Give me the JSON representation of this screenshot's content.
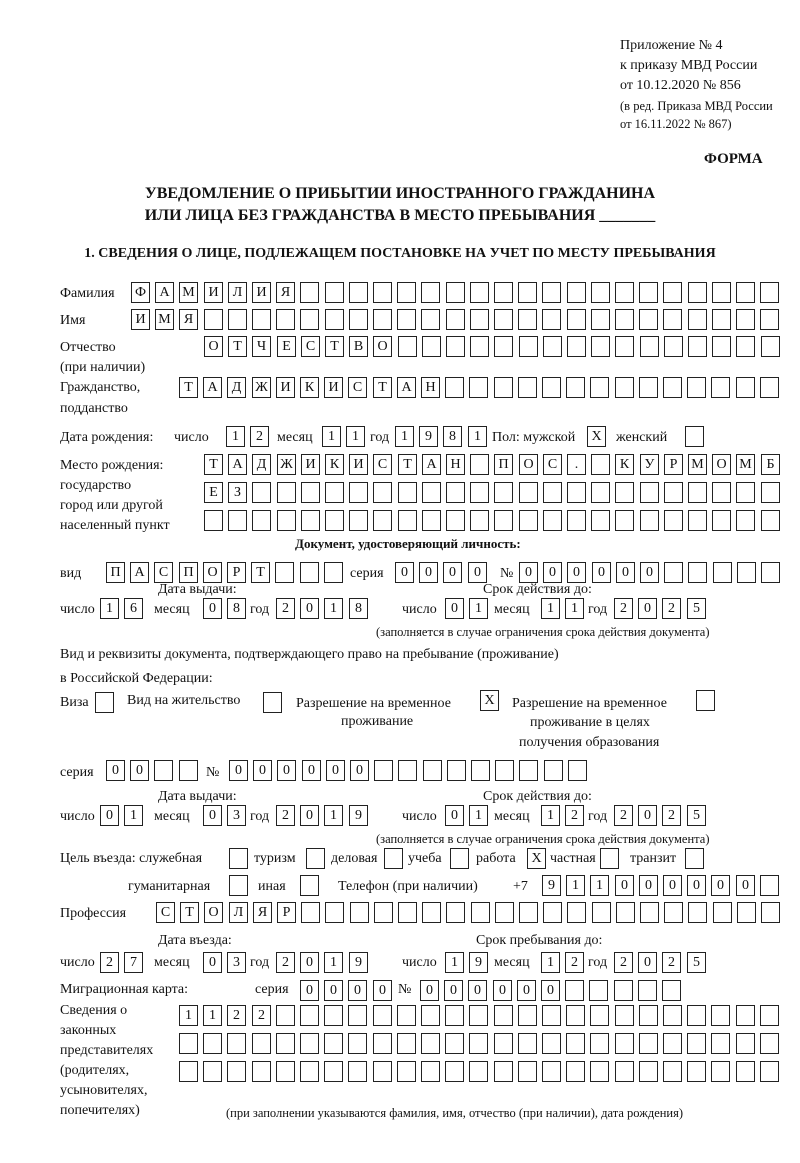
{
  "header": {
    "appendix": "Приложение № 4",
    "order": "к приказу МВД России",
    "order_date": "от 10.12.2020 № 856",
    "revision_1": "(в ред. Приказа МВД России",
    "revision_2": "от 16.11.2022 № 867)",
    "form_label": "ФОРМА",
    "title_1": "УВЕДОМЛЕНИЕ О ПРИБЫТИИ ИНОСТРАННОГО ГРАЖДАНИНА",
    "title_2": "ИЛИ ЛИЦА БЕЗ ГРАЖДАНСТВА В МЕСТО ПРЕБЫВАНИЯ _______",
    "section_1": "1. СВЕДЕНИЯ О ЛИЦЕ, ПОДЛЕЖАЩЕМ ПОСТАНОВКЕ НА УЧЕТ ПО МЕСТУ ПРЕБЫВАНИЯ"
  },
  "labels": {
    "surname": "Фамилия",
    "name": "Имя",
    "patronymic_1": "Отчество",
    "patronymic_2": "(при наличии)",
    "citizenship_1": "Гражданство,",
    "citizenship_2": "подданство",
    "birth_date": "Дата рождения:",
    "day": "число",
    "month": "месяц",
    "year": "год",
    "sex": "Пол: мужской",
    "female": "женский",
    "birth_place_1": "Место рождения:",
    "birth_place_2": "государство",
    "birth_place_3": "город или другой",
    "birth_place_4": "населенный пункт",
    "id_doc": "Документ, удостоверяющий личность:",
    "kind": "вид",
    "series": "серия",
    "number": "№",
    "issue_date": "Дата выдачи:",
    "valid_until": "Срок действия до:",
    "valid_note": "(заполняется в случае ограничения срока действия документа)",
    "right_doc_1": "Вид и реквизиты документа, подтверждающего право на пребывание (проживание)",
    "right_doc_2": "в Российской Федерации:",
    "visa": "Виза",
    "residence": "Вид на жительство",
    "temp_res_1": "Разрешение на временное",
    "temp_res_2": "проживание",
    "temp_edu_1": "Разрешение на временное",
    "temp_edu_2": "проживание в целях",
    "temp_edu_3": "получения образования",
    "purpose": "Цель въезда: служебная",
    "tourism": "туризм",
    "business": "деловая",
    "study": "учеба",
    "work": "работа",
    "private": "частная",
    "transit": "транзит",
    "humanitarian": "гуманитарная",
    "other": "иная",
    "phone": "Телефон (при наличии)",
    "phone_prefix": "+7",
    "profession": "Профессия",
    "entry_date": "Дата въезда:",
    "stay_until": "Срок пребывания до:",
    "migration_card": "Миграционная карта:",
    "reps_1": "Сведения о",
    "reps_2": "законных",
    "reps_3": "представителях",
    "reps_4": "(родителях,",
    "reps_5": "усыновителях,",
    "reps_6": "попечителях)",
    "reps_note": "(при заполнении указываются фамилия, имя, отчество (при наличии), дата рождения)"
  },
  "person": {
    "surname": "ФАМИЛИЯ",
    "name": "ИМЯ",
    "patronymic": "ОТЧЕСТВО",
    "citizenship": "ТАДЖИКИСТАН",
    "birth_day": "12",
    "birth_month": "11",
    "birth_year": "1981",
    "sex_male": "X",
    "sex_female": "",
    "birth_place_1": "ТАДЖИКИСТАН ПОС. КУРМОМБ",
    "birth_place_2": "ЕЗ",
    "birth_place_3": ""
  },
  "id_document": {
    "kind": "ПАСПОРТ",
    "series": "0000",
    "number": "000000",
    "issue_day": "16",
    "issue_month": "08",
    "issue_year": "2018",
    "valid_day": "01",
    "valid_month": "11",
    "valid_year": "2025"
  },
  "right_document": {
    "visa": "",
    "residence_permit": "",
    "temporary_residence": "X",
    "temporary_residence_edu": "",
    "series": "00",
    "number": "000000",
    "issue_day": "01",
    "issue_month": "03",
    "issue_year": "2019",
    "valid_day": "01",
    "valid_month": "12",
    "valid_year": "2025"
  },
  "purpose": {
    "service": "",
    "tourism": "",
    "business": "",
    "study": "",
    "work": "X",
    "private": "",
    "transit": "",
    "humanitarian": "",
    "other": ""
  },
  "phone": "911000000",
  "profession": "СТОЛЯР",
  "entry": {
    "entry_day": "27",
    "entry_month": "03",
    "entry_year": "2019",
    "stay_day": "19",
    "stay_month": "12",
    "stay_year": "2025"
  },
  "migration_card": {
    "series": "0000",
    "number": "000000"
  },
  "representatives": {
    "line_1": "1122",
    "line_2": "",
    "line_3": ""
  }
}
